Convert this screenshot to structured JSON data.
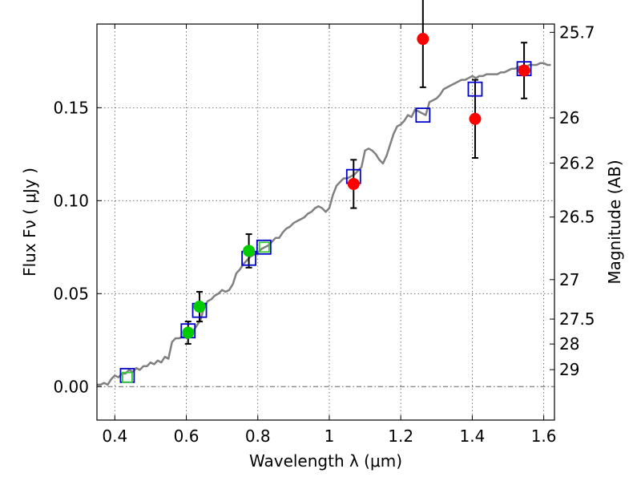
{
  "chart_data": {
    "type": "scatter",
    "xlabel": "Wavelength  λ (μm)",
    "ylabel": "Flux  Fν  ( μJy )",
    "ylabel2": "Magnitude (AB)",
    "xlim": [
      0.35,
      1.63
    ],
    "ylim": [
      -0.018,
      0.195
    ],
    "x_ticks": [
      {
        "value": 0.4,
        "label": "0.4"
      },
      {
        "value": 0.6,
        "label": "0.6"
      },
      {
        "value": 0.8,
        "label": "0.8"
      },
      {
        "value": 1.0,
        "label": "1"
      },
      {
        "value": 1.2,
        "label": "1.2"
      },
      {
        "value": 1.4,
        "label": "1.4"
      },
      {
        "value": 1.6,
        "label": "1.6"
      }
    ],
    "y_ticks": [
      {
        "value": 0.0,
        "label": "0.00"
      },
      {
        "value": 0.05,
        "label": "0.05"
      },
      {
        "value": 0.1,
        "label": "0.10"
      },
      {
        "value": 0.15,
        "label": "0.15"
      }
    ],
    "mag_ticks": [
      {
        "mag": 25.7,
        "label": "25.7"
      },
      {
        "mag": 26.0,
        "label": "26"
      },
      {
        "mag": 26.2,
        "label": "26.2"
      },
      {
        "mag": 26.5,
        "label": "26.5"
      },
      {
        "mag": 27.0,
        "label": "27"
      },
      {
        "mag": 27.5,
        "label": "27.5"
      },
      {
        "mag": 28.0,
        "label": "28"
      },
      {
        "mag": 29.0,
        "label": "29"
      }
    ],
    "horizontal_reference_line": 0.0,
    "series": [
      {
        "name": "model-spectrum",
        "kind": "line",
        "color": "#808080",
        "points": [
          [
            0.35,
            0.001
          ],
          [
            0.36,
            0.001
          ],
          [
            0.37,
            0.002
          ],
          [
            0.38,
            0.001
          ],
          [
            0.39,
            0.004
          ],
          [
            0.4,
            0.006
          ],
          [
            0.41,
            0.005
          ],
          [
            0.42,
            0.007
          ],
          [
            0.43,
            0.007
          ],
          [
            0.44,
            0.009
          ],
          [
            0.45,
            0.008
          ],
          [
            0.46,
            0.01
          ],
          [
            0.47,
            0.009
          ],
          [
            0.48,
            0.011
          ],
          [
            0.49,
            0.011
          ],
          [
            0.5,
            0.013
          ],
          [
            0.51,
            0.012
          ],
          [
            0.52,
            0.014
          ],
          [
            0.53,
            0.013
          ],
          [
            0.54,
            0.016
          ],
          [
            0.55,
            0.015
          ],
          [
            0.56,
            0.024
          ],
          [
            0.57,
            0.026
          ],
          [
            0.58,
            0.026
          ],
          [
            0.59,
            0.027
          ],
          [
            0.6,
            0.028
          ],
          [
            0.61,
            0.029
          ],
          [
            0.62,
            0.03
          ],
          [
            0.63,
            0.033
          ],
          [
            0.64,
            0.036
          ],
          [
            0.65,
            0.043
          ],
          [
            0.66,
            0.046
          ],
          [
            0.67,
            0.047
          ],
          [
            0.68,
            0.049
          ],
          [
            0.69,
            0.05
          ],
          [
            0.7,
            0.052
          ],
          [
            0.71,
            0.051
          ],
          [
            0.72,
            0.052
          ],
          [
            0.73,
            0.055
          ],
          [
            0.74,
            0.061
          ],
          [
            0.75,
            0.063
          ],
          [
            0.76,
            0.066
          ],
          [
            0.77,
            0.068
          ],
          [
            0.78,
            0.07
          ],
          [
            0.79,
            0.071
          ],
          [
            0.8,
            0.072
          ],
          [
            0.81,
            0.074
          ],
          [
            0.82,
            0.075
          ],
          [
            0.83,
            0.076
          ],
          [
            0.84,
            0.078
          ],
          [
            0.85,
            0.08
          ],
          [
            0.86,
            0.08
          ],
          [
            0.87,
            0.083
          ],
          [
            0.88,
            0.085
          ],
          [
            0.89,
            0.086
          ],
          [
            0.9,
            0.088
          ],
          [
            0.91,
            0.089
          ],
          [
            0.92,
            0.09
          ],
          [
            0.93,
            0.091
          ],
          [
            0.94,
            0.093
          ],
          [
            0.95,
            0.094
          ],
          [
            0.96,
            0.096
          ],
          [
            0.97,
            0.097
          ],
          [
            0.98,
            0.096
          ],
          [
            0.99,
            0.094
          ],
          [
            1.0,
            0.096
          ],
          [
            1.01,
            0.103
          ],
          [
            1.02,
            0.108
          ],
          [
            1.03,
            0.11
          ],
          [
            1.04,
            0.112
          ],
          [
            1.05,
            0.112
          ],
          [
            1.06,
            0.113
          ],
          [
            1.07,
            0.114
          ],
          [
            1.08,
            0.116
          ],
          [
            1.09,
            0.118
          ],
          [
            1.1,
            0.127
          ],
          [
            1.11,
            0.128
          ],
          [
            1.12,
            0.127
          ],
          [
            1.13,
            0.125
          ],
          [
            1.14,
            0.122
          ],
          [
            1.15,
            0.12
          ],
          [
            1.16,
            0.124
          ],
          [
            1.17,
            0.13
          ],
          [
            1.18,
            0.136
          ],
          [
            1.19,
            0.14
          ],
          [
            1.2,
            0.141
          ],
          [
            1.21,
            0.143
          ],
          [
            1.22,
            0.146
          ],
          [
            1.23,
            0.145
          ],
          [
            1.24,
            0.149
          ],
          [
            1.25,
            0.148
          ],
          [
            1.26,
            0.147
          ],
          [
            1.27,
            0.146
          ],
          [
            1.28,
            0.153
          ],
          [
            1.29,
            0.154
          ],
          [
            1.3,
            0.155
          ],
          [
            1.31,
            0.157
          ],
          [
            1.32,
            0.16
          ],
          [
            1.33,
            0.161
          ],
          [
            1.34,
            0.162
          ],
          [
            1.35,
            0.163
          ],
          [
            1.36,
            0.164
          ],
          [
            1.37,
            0.165
          ],
          [
            1.38,
            0.165
          ],
          [
            1.39,
            0.166
          ],
          [
            1.4,
            0.167
          ],
          [
            1.41,
            0.166
          ],
          [
            1.42,
            0.167
          ],
          [
            1.43,
            0.167
          ],
          [
            1.44,
            0.168
          ],
          [
            1.45,
            0.168
          ],
          [
            1.46,
            0.168
          ],
          [
            1.47,
            0.168
          ],
          [
            1.48,
            0.169
          ],
          [
            1.49,
            0.169
          ],
          [
            1.5,
            0.17
          ],
          [
            1.51,
            0.171
          ],
          [
            1.52,
            0.171
          ],
          [
            1.53,
            0.172
          ],
          [
            1.54,
            0.172
          ],
          [
            1.55,
            0.172
          ],
          [
            1.56,
            0.173
          ],
          [
            1.57,
            0.173
          ],
          [
            1.58,
            0.173
          ],
          [
            1.59,
            0.174
          ],
          [
            1.6,
            0.174
          ],
          [
            1.61,
            0.173
          ],
          [
            1.62,
            0.173
          ]
        ]
      },
      {
        "name": "model-photometry",
        "kind": "open-square",
        "color": "#0000cc",
        "points": [
          [
            0.435,
            0.006
          ],
          [
            0.605,
            0.03
          ],
          [
            0.637,
            0.041
          ],
          [
            0.775,
            0.069
          ],
          [
            0.817,
            0.075
          ],
          [
            1.068,
            0.113
          ],
          [
            1.262,
            0.146
          ],
          [
            1.408,
            0.16
          ],
          [
            1.545,
            0.171
          ]
        ]
      },
      {
        "name": "model-photometry-green",
        "kind": "open-square",
        "color": "#33cc33",
        "points": [
          [
            0.435,
            0.005
          ],
          [
            0.818,
            0.075
          ]
        ]
      },
      {
        "name": "observed-optical",
        "kind": "filled-circle",
        "color": "#00cc00",
        "points": [
          [
            0.605,
            0.029,
            0.006
          ],
          [
            0.637,
            0.043,
            0.008
          ],
          [
            0.775,
            0.073,
            0.009
          ]
        ]
      },
      {
        "name": "observed-infrared",
        "kind": "filled-circle",
        "color": "#ff0000",
        "points": [
          [
            1.068,
            0.109,
            0.013
          ],
          [
            1.262,
            0.187,
            0.026
          ],
          [
            1.408,
            0.144,
            0.021
          ],
          [
            1.545,
            0.17,
            0.015
          ]
        ]
      }
    ]
  }
}
